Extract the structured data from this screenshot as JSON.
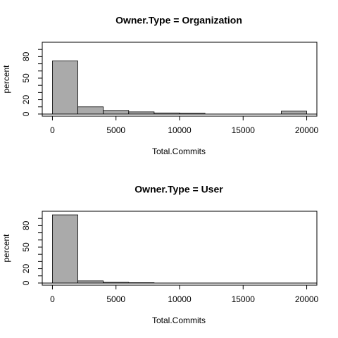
{
  "chart_data": [
    {
      "type": "histogram",
      "title": "Owner.Type = Organization",
      "xlabel": "Total.Commits",
      "ylabel": "percent",
      "bins": [
        0,
        2000,
        4000,
        6000,
        8000,
        10000,
        12000,
        14000,
        16000,
        18000,
        20000
      ],
      "values": [
        74,
        10,
        5,
        3,
        1.5,
        1,
        0,
        0,
        0,
        4
      ],
      "color": "#aaaaaa",
      "xlim": [
        -800,
        20800
      ],
      "xticks": [
        0,
        5000,
        10000,
        15000,
        20000
      ],
      "ylim": [
        -3,
        100
      ],
      "yticks": [
        0,
        20,
        50,
        80
      ],
      "yminorticks": [
        10,
        30,
        40,
        60,
        70,
        90
      ]
    },
    {
      "type": "histogram",
      "title": "Owner.Type = User",
      "xlabel": "Total.Commits",
      "ylabel": "percent",
      "bins": [
        0,
        2000,
        4000,
        6000,
        8000,
        10000,
        12000,
        14000,
        16000,
        18000,
        20000
      ],
      "values": [
        95,
        3,
        1,
        0.5,
        0,
        0,
        0,
        0,
        0,
        0
      ],
      "color": "#aaaaaa",
      "xlim": [
        -800,
        20800
      ],
      "xticks": [
        0,
        5000,
        10000,
        15000,
        20000
      ],
      "ylim": [
        -3,
        100
      ],
      "yticks": [
        0,
        20,
        50,
        80
      ],
      "yminorticks": [
        10,
        30,
        40,
        60,
        70,
        90
      ]
    }
  ]
}
